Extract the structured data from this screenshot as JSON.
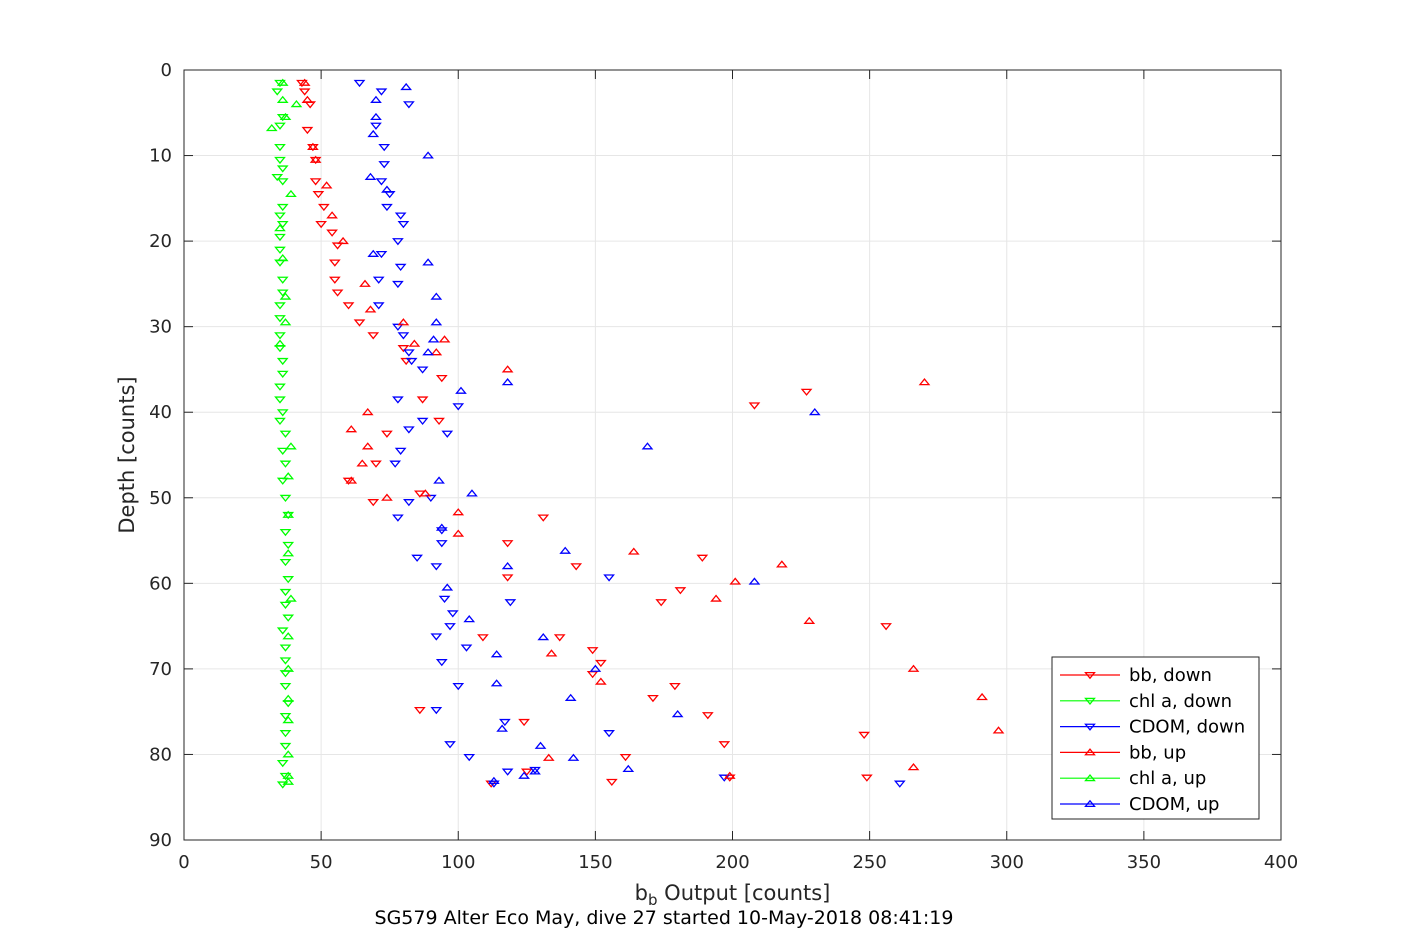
{
  "chart_data": {
    "type": "scatter",
    "title": "",
    "caption": "SG579 Alter Eco May, dive 27 started 10-May-2018 08:41:19",
    "xlabel": "b",
    "xlabel_sub": "b",
    "xlabel_rest": " Output [counts]",
    "ylabel": "Depth [counts]",
    "xlim": [
      0,
      400
    ],
    "ylim": [
      0,
      90
    ],
    "y_reversed": true,
    "grid": true,
    "legend_position": "bottom-right",
    "xticks": [
      "0",
      "50",
      "100",
      "150",
      "200",
      "250",
      "300",
      "350",
      "400"
    ],
    "yticks": [
      "0",
      "10",
      "20",
      "30",
      "40",
      "50",
      "60",
      "70",
      "80",
      "90"
    ],
    "series": [
      {
        "name": "bb, down",
        "marker": "triangle-down",
        "color": "#ff0000",
        "points": [
          [
            43,
            1.5
          ],
          [
            44,
            2.5
          ],
          [
            46,
            4
          ],
          [
            45,
            7
          ],
          [
            47,
            9
          ],
          [
            48,
            10.5
          ],
          [
            48,
            13
          ],
          [
            49,
            14.5
          ],
          [
            51,
            16
          ],
          [
            50,
            18
          ],
          [
            54,
            19
          ],
          [
            56,
            20.5
          ],
          [
            55,
            22.5
          ],
          [
            55,
            24.5
          ],
          [
            56,
            26
          ],
          [
            60,
            27.5
          ],
          [
            64,
            29.5
          ],
          [
            69,
            31
          ],
          [
            80,
            32.5
          ],
          [
            81,
            34
          ],
          [
            94,
            36
          ],
          [
            87,
            38.5
          ],
          [
            93,
            41
          ],
          [
            74,
            42.5
          ],
          [
            70,
            46
          ],
          [
            60,
            48
          ],
          [
            69,
            50.5
          ],
          [
            86,
            49.5
          ],
          [
            131,
            52.3
          ],
          [
            118,
            55.3
          ],
          [
            189,
            57
          ],
          [
            143,
            58
          ],
          [
            118,
            59.3
          ],
          [
            181,
            60.8
          ],
          [
            174,
            62.2
          ],
          [
            109,
            66.3
          ],
          [
            137,
            66.3
          ],
          [
            149,
            67.8
          ],
          [
            152,
            69.3
          ],
          [
            149,
            70.6
          ],
          [
            171,
            73.4
          ],
          [
            179,
            72
          ],
          [
            86,
            74.8
          ],
          [
            191,
            75.4
          ],
          [
            124,
            76.2
          ],
          [
            197,
            78.8
          ],
          [
            161,
            80.3
          ],
          [
            125,
            82
          ],
          [
            156,
            83.2
          ],
          [
            112,
            83.4
          ],
          [
            199,
            82.7
          ],
          [
            249,
            82.7
          ],
          [
            208,
            39.2
          ],
          [
            227,
            37.6
          ],
          [
            256,
            65
          ],
          [
            248,
            77.7
          ]
        ]
      },
      {
        "name": "chl a, down",
        "marker": "triangle-down",
        "color": "#00ff00",
        "points": [
          [
            35,
            1.5
          ],
          [
            34,
            2.5
          ],
          [
            36,
            5.5
          ],
          [
            35,
            6.5
          ],
          [
            35,
            9
          ],
          [
            35,
            10.5
          ],
          [
            36,
            11.5
          ],
          [
            34,
            12.5
          ],
          [
            36,
            13
          ],
          [
            36,
            16
          ],
          [
            35,
            17
          ],
          [
            36,
            18
          ],
          [
            35,
            19.5
          ],
          [
            35,
            21
          ],
          [
            35,
            22.5
          ],
          [
            36,
            24.5
          ],
          [
            36,
            26
          ],
          [
            35,
            27.5
          ],
          [
            35,
            29
          ],
          [
            35,
            31
          ],
          [
            35,
            32.5
          ],
          [
            36,
            34
          ],
          [
            36,
            35.5
          ],
          [
            35,
            37
          ],
          [
            35,
            38.5
          ],
          [
            36,
            40
          ],
          [
            35,
            41
          ],
          [
            37,
            42.5
          ],
          [
            36,
            44.5
          ],
          [
            37,
            46
          ],
          [
            36,
            48
          ],
          [
            37,
            50
          ],
          [
            38,
            52
          ],
          [
            37,
            54
          ],
          [
            38,
            55.5
          ],
          [
            37,
            57.5
          ],
          [
            38,
            59.5
          ],
          [
            37,
            61
          ],
          [
            37,
            62.5
          ],
          [
            38,
            64
          ],
          [
            36,
            65.5
          ],
          [
            37,
            67.5
          ],
          [
            37,
            69
          ],
          [
            37,
            70.5
          ],
          [
            37,
            72
          ],
          [
            38,
            74
          ],
          [
            37,
            75.5
          ],
          [
            37,
            77.5
          ],
          [
            37,
            79
          ],
          [
            36,
            81
          ],
          [
            37,
            82.5
          ],
          [
            36,
            83.5
          ]
        ]
      },
      {
        "name": "CDOM, down",
        "marker": "triangle-down",
        "color": "#0000ff",
        "points": [
          [
            64,
            1.5
          ],
          [
            72,
            2.5
          ],
          [
            82,
            4
          ],
          [
            70,
            6.5
          ],
          [
            73,
            9
          ],
          [
            73,
            11
          ],
          [
            72,
            13
          ],
          [
            75,
            14.5
          ],
          [
            74,
            16
          ],
          [
            79,
            17
          ],
          [
            80,
            18
          ],
          [
            78,
            20
          ],
          [
            72,
            21.5
          ],
          [
            79,
            23
          ],
          [
            71,
            24.5
          ],
          [
            78,
            25
          ],
          [
            71,
            27.5
          ],
          [
            78,
            30
          ],
          [
            80,
            31
          ],
          [
            82,
            33
          ],
          [
            83,
            34
          ],
          [
            87,
            35
          ],
          [
            78,
            38.5
          ],
          [
            100,
            39.3
          ],
          [
            87,
            41
          ],
          [
            82,
            42
          ],
          [
            96,
            42.5
          ],
          [
            79,
            44.5
          ],
          [
            77,
            46
          ],
          [
            90,
            50
          ],
          [
            82,
            50.5
          ],
          [
            78,
            52.3
          ],
          [
            94,
            53.8
          ],
          [
            94,
            55.3
          ],
          [
            85,
            57
          ],
          [
            92,
            58
          ],
          [
            95,
            61.8
          ],
          [
            98,
            63.5
          ],
          [
            92,
            66.2
          ],
          [
            97,
            65
          ],
          [
            103,
            67.5
          ],
          [
            94,
            69.2
          ],
          [
            100,
            72
          ],
          [
            92,
            74.8
          ],
          [
            117,
            76.2
          ],
          [
            97,
            78.8
          ],
          [
            104,
            80.3
          ],
          [
            118,
            82
          ],
          [
            113,
            83.4
          ],
          [
            128,
            81.8
          ],
          [
            155,
            77.5
          ],
          [
            119,
            62.2
          ],
          [
            155,
            59.3
          ],
          [
            261,
            83.4
          ],
          [
            197,
            82.7
          ]
        ]
      },
      {
        "name": "bb, up",
        "marker": "triangle-up",
        "color": "#ff0000",
        "points": [
          [
            44,
            1.5
          ],
          [
            45,
            3.5
          ],
          [
            47,
            9
          ],
          [
            48,
            10.5
          ],
          [
            52,
            13.5
          ],
          [
            54,
            17
          ],
          [
            58,
            20
          ],
          [
            66,
            25
          ],
          [
            68,
            28
          ],
          [
            80,
            29.5
          ],
          [
            84,
            32
          ],
          [
            92,
            33
          ],
          [
            95,
            31.5
          ],
          [
            118,
            35
          ],
          [
            67,
            40
          ],
          [
            61,
            42
          ],
          [
            67,
            44
          ],
          [
            65,
            46
          ],
          [
            61,
            48
          ],
          [
            74,
            50
          ],
          [
            88,
            49.5
          ],
          [
            100,
            51.7
          ],
          [
            100,
            54.2
          ],
          [
            164,
            56.3
          ],
          [
            218,
            57.8
          ],
          [
            201,
            59.8
          ],
          [
            194,
            61.8
          ],
          [
            228,
            64.4
          ],
          [
            134,
            68.2
          ],
          [
            152,
            71.5
          ],
          [
            266,
            70
          ],
          [
            291,
            73.3
          ],
          [
            297,
            77.2
          ],
          [
            133,
            80.4
          ],
          [
            266,
            81.5
          ],
          [
            199,
            82.5
          ],
          [
            270,
            36.5
          ]
        ]
      },
      {
        "name": "chl a, up",
        "marker": "triangle-up",
        "color": "#00ff00",
        "points": [
          [
            36,
            1.5
          ],
          [
            41,
            4
          ],
          [
            36,
            3.5
          ],
          [
            32,
            6.8
          ],
          [
            37,
            5.5
          ],
          [
            39,
            14.5
          ],
          [
            35,
            18.5
          ],
          [
            36,
            22
          ],
          [
            37,
            26.5
          ],
          [
            37,
            29.5
          ],
          [
            35,
            32
          ],
          [
            39,
            44
          ],
          [
            38,
            47.5
          ],
          [
            38,
            52
          ],
          [
            38,
            56.5
          ],
          [
            39,
            61.8
          ],
          [
            38,
            66.2
          ],
          [
            38,
            70
          ],
          [
            38,
            73.5
          ],
          [
            38,
            76
          ],
          [
            38,
            80
          ],
          [
            38,
            82.5
          ],
          [
            38,
            83.2
          ]
        ]
      },
      {
        "name": "CDOM, up",
        "marker": "triangle-up",
        "color": "#0000ff",
        "points": [
          [
            81,
            2
          ],
          [
            70,
            3.5
          ],
          [
            70,
            5.5
          ],
          [
            69,
            7.5
          ],
          [
            89,
            10
          ],
          [
            68,
            12.5
          ],
          [
            74,
            14
          ],
          [
            69,
            21.5
          ],
          [
            89,
            22.5
          ],
          [
            92,
            26.5
          ],
          [
            92,
            29.5
          ],
          [
            91,
            31.5
          ],
          [
            89,
            33
          ],
          [
            101,
            37.5
          ],
          [
            118,
            36.5
          ],
          [
            230,
            40
          ],
          [
            169,
            44
          ],
          [
            93,
            48
          ],
          [
            105,
            49.5
          ],
          [
            94,
            53.5
          ],
          [
            139,
            56.2
          ],
          [
            118,
            58
          ],
          [
            208,
            59.8
          ],
          [
            96,
            60.5
          ],
          [
            104,
            64.2
          ],
          [
            131,
            66.3
          ],
          [
            114,
            68.3
          ],
          [
            150,
            70
          ],
          [
            114,
            71.7
          ],
          [
            141,
            73.4
          ],
          [
            180,
            75.3
          ],
          [
            116,
            77
          ],
          [
            130,
            79
          ],
          [
            142,
            80.4
          ],
          [
            128,
            82
          ],
          [
            162,
            81.7
          ],
          [
            124,
            82.5
          ],
          [
            113,
            83.1
          ]
        ]
      }
    ]
  }
}
